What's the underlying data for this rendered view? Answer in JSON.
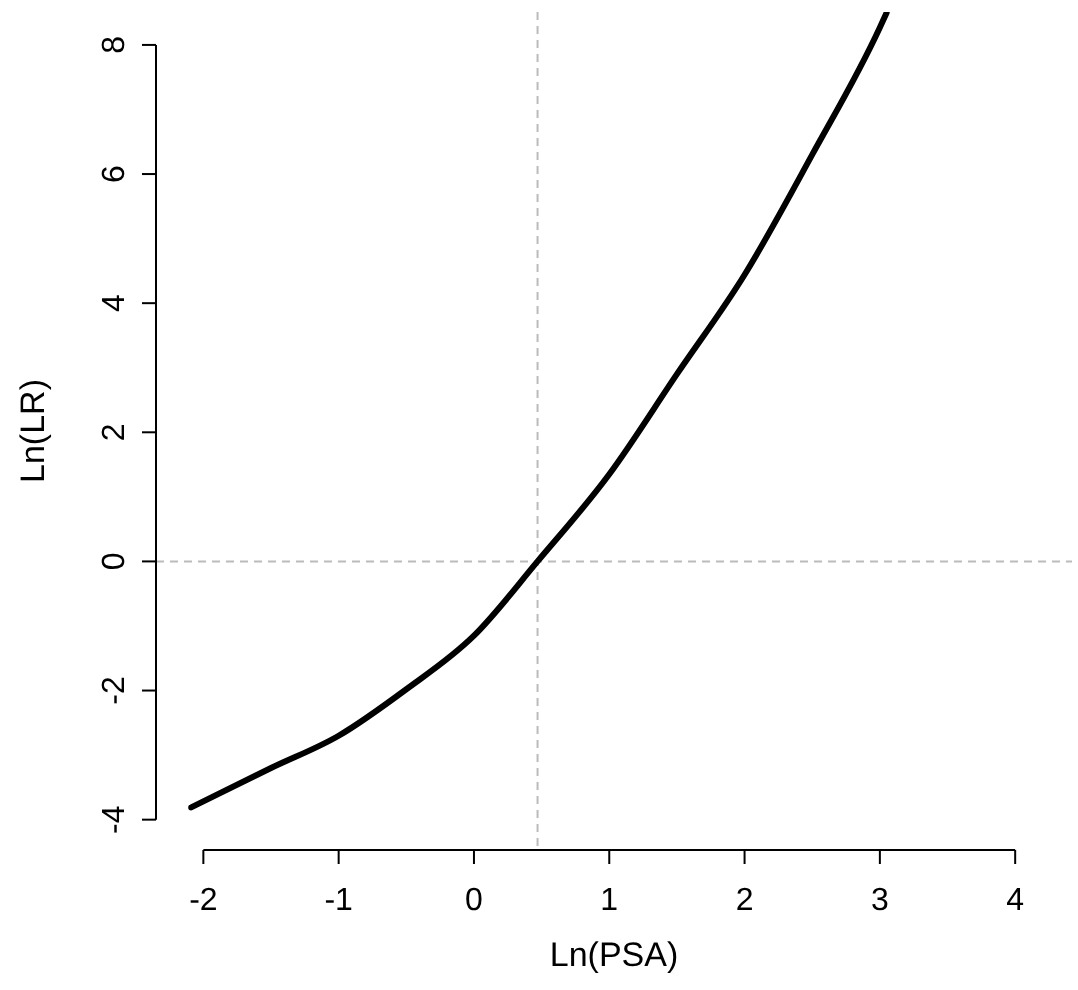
{
  "chart_data": {
    "type": "line",
    "xlabel": "Ln(PSA)",
    "ylabel": "Ln(LR)",
    "x": [
      -2.09,
      -1.5,
      -1.0,
      -0.5,
      0,
      0.47,
      1,
      1.5,
      2,
      2.5,
      3,
      3.05
    ],
    "series": [
      {
        "color": "#000000",
        "values": [
          -3.81,
          -3.2,
          -2.7,
          -1.98,
          -1.15,
          0,
          1.35,
          2.9,
          4.44,
          6.3,
          8.27,
          8.5
        ]
      }
    ],
    "xlim": [
      -2.35,
      4.42
    ],
    "ylim": [
      -4.47,
      8.51
    ],
    "xticks": [
      -2,
      -1,
      0,
      1,
      2,
      3,
      4
    ],
    "yticks": [
      -4,
      -2,
      0,
      2,
      4,
      6,
      8
    ],
    "ref_lines": [
      {
        "axis": "x",
        "value": 0.47,
        "color": "#bbbbbb",
        "line_style": "dashed"
      },
      {
        "axis": "y",
        "value": 0,
        "color": "#bbbbbb",
        "line_style": "dashed"
      }
    ],
    "grid": false,
    "marker": "none",
    "line_style": "solid"
  }
}
